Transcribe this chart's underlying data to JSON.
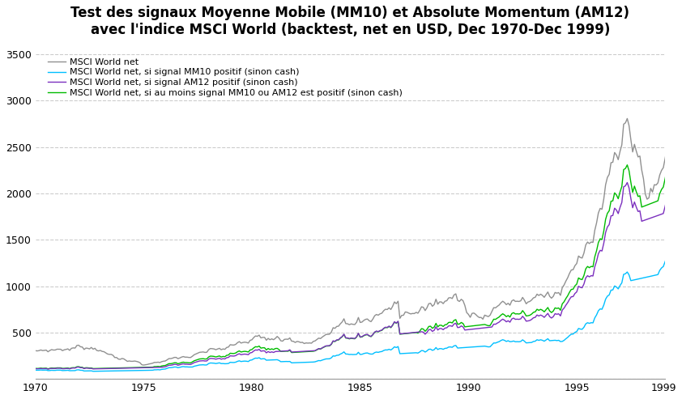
{
  "title_line1": "Test des signaux Moyenne Mobile (MM10) et Absolute Momentum (AM12)",
  "title_line2": "avec l'indice MSCI World (backtest, net en USD, Dec 1970-Dec 1999)",
  "legend": [
    "MSCI World net",
    "MSCI World net, si signal MM10 positif (sinon cash)",
    "MSCI World net, si signal AM12 positif (sinon cash)",
    "MSCI World net, si au moins signal MM10 ou AM12 est positif (sinon cash)"
  ],
  "colors": [
    "#909090",
    "#00bfff",
    "#7b2fbe",
    "#00bb00"
  ],
  "ylim": [
    0,
    3600
  ],
  "yticks": [
    0,
    500,
    1000,
    1500,
    2000,
    2500,
    3000,
    3500
  ],
  "xlim_start": 1970.0,
  "xlim_end": 1999.083,
  "xticks": [
    1970,
    1975,
    1980,
    1985,
    1990,
    1995,
    1999
  ],
  "background_color": "#ffffff",
  "grid_color": "#cccccc",
  "title_fontsize": 12,
  "legend_fontsize": 8
}
